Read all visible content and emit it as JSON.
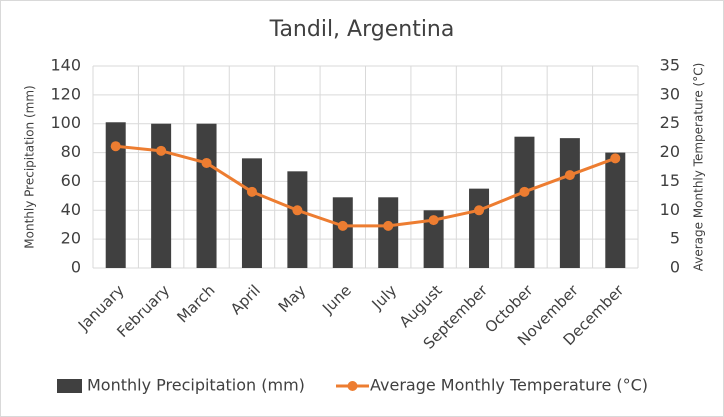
{
  "chart_data": {
    "type": "bar-line",
    "title": "Tandil, Argentina",
    "categories": [
      "January",
      "February",
      "March",
      "April",
      "May",
      "June",
      "July",
      "August",
      "September",
      "October",
      "November",
      "December"
    ],
    "series": [
      {
        "name": "Monthly Precipitation  (mm)",
        "type": "bar",
        "color": "#404040",
        "values": [
          101,
          100,
          100,
          76,
          67,
          49,
          49,
          40,
          55,
          91,
          90,
          80
        ]
      },
      {
        "name": "Average Monthly  Temperature (°C)",
        "type": "line",
        "axis": "y2",
        "color": "#ed7d31",
        "values": [
          21.1,
          20.3,
          18.2,
          13.2,
          10,
          7.3,
          7.3,
          8.3,
          10,
          13.2,
          16.1,
          19
        ]
      }
    ],
    "y_label": "Monthly Precipitation  (mm)",
    "y2_label": "Average Monthly  Temperature (°C)",
    "ylim": [
      0,
      140
    ],
    "yticks": [
      0,
      20,
      40,
      60,
      80,
      100,
      120,
      140
    ],
    "y2lim": [
      0,
      35
    ],
    "y2ticks": [
      0,
      5,
      10,
      15,
      20,
      25,
      30,
      35
    ],
    "grid": true,
    "legend": "bottom"
  }
}
